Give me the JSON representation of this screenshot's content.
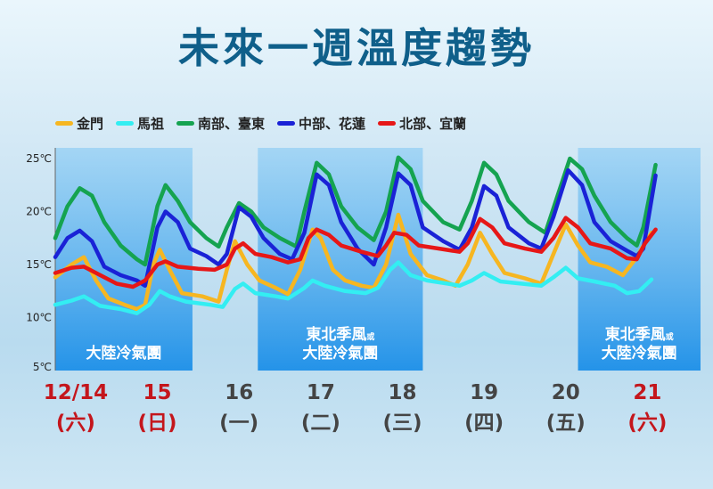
{
  "title": "未來一週溫度趨勢",
  "chart_data": {
    "type": "line",
    "title": "未來一週溫度趨勢",
    "y_ticks": [
      "25℃",
      "20℃",
      "15℃",
      "10℃",
      "5℃"
    ],
    "ylim": [
      5,
      25
    ],
    "grid": false,
    "legend_position": "top-left",
    "days": [
      {
        "date": "12/14",
        "weekday": "(六)",
        "color": "#c4161c"
      },
      {
        "date": "15",
        "weekday": "(日)",
        "color": "#c4161c"
      },
      {
        "date": "16",
        "weekday": "(一)",
        "color": "#444444"
      },
      {
        "date": "17",
        "weekday": "(二)",
        "color": "#444444"
      },
      {
        "date": "18",
        "weekday": "(三)",
        "color": "#444444"
      },
      {
        "date": "19",
        "weekday": "(四)",
        "color": "#444444"
      },
      {
        "date": "20",
        "weekday": "(五)",
        "color": "#444444"
      },
      {
        "date": "21",
        "weekday": "(六)",
        "color": "#c4161c"
      }
    ],
    "x_range": [
      0,
      7.9
    ],
    "bands": [
      {
        "from": 0,
        "to": 1.68,
        "label_main": "大陸冷氣團",
        "label_top": "",
        "label_top_small": ""
      },
      {
        "from": 2.48,
        "to": 4.5,
        "label_main": "大陸冷氣團",
        "label_top": "東北季風",
        "label_top_small": "或"
      },
      {
        "from": 6.4,
        "to": 7.9,
        "label_main": "大陸冷氣團",
        "label_top": "東北季風",
        "label_top_small": "或"
      }
    ],
    "series": [
      {
        "name": "金門",
        "color": "#f6b621",
        "points": [
          [
            0,
            13.8
          ],
          [
            0.2,
            15.0
          ],
          [
            0.35,
            15.7
          ],
          [
            0.5,
            13.5
          ],
          [
            0.65,
            11.8
          ],
          [
            0.85,
            11.2
          ],
          [
            1.0,
            10.8
          ],
          [
            1.1,
            11.2
          ],
          [
            1.2,
            15.0
          ],
          [
            1.28,
            16.4
          ],
          [
            1.4,
            14.5
          ],
          [
            1.55,
            12.3
          ],
          [
            1.8,
            12.0
          ],
          [
            2.0,
            11.5
          ],
          [
            2.1,
            14.5
          ],
          [
            2.2,
            17.2
          ],
          [
            2.35,
            15.0
          ],
          [
            2.5,
            13.5
          ],
          [
            2.7,
            12.8
          ],
          [
            2.85,
            12.2
          ],
          [
            3.0,
            14.5
          ],
          [
            3.15,
            18.3
          ],
          [
            3.25,
            17.5
          ],
          [
            3.4,
            14.5
          ],
          [
            3.55,
            13.5
          ],
          [
            3.75,
            13.0
          ],
          [
            3.9,
            12.8
          ],
          [
            4.05,
            15.0
          ],
          [
            4.2,
            19.7
          ],
          [
            4.35,
            16.0
          ],
          [
            4.55,
            14.0
          ],
          [
            4.75,
            13.5
          ],
          [
            4.9,
            13.0
          ],
          [
            5.05,
            15.0
          ],
          [
            5.2,
            18.0
          ],
          [
            5.35,
            16.0
          ],
          [
            5.5,
            14.2
          ],
          [
            5.75,
            13.7
          ],
          [
            5.95,
            13.2
          ],
          [
            6.1,
            16.0
          ],
          [
            6.25,
            18.8
          ],
          [
            6.4,
            16.8
          ],
          [
            6.55,
            15.2
          ],
          [
            6.75,
            14.8
          ],
          [
            6.95,
            14.0
          ],
          [
            7.1,
            15.5
          ],
          [
            7.3,
            18.0
          ]
        ]
      },
      {
        "name": "馬祖",
        "color": "#33eef2",
        "points": [
          [
            0,
            11.2
          ],
          [
            0.2,
            11.6
          ],
          [
            0.35,
            12.0
          ],
          [
            0.55,
            11.1
          ],
          [
            0.8,
            10.8
          ],
          [
            1.0,
            10.4
          ],
          [
            1.15,
            11.2
          ],
          [
            1.28,
            12.5
          ],
          [
            1.4,
            12.0
          ],
          [
            1.6,
            11.5
          ],
          [
            1.9,
            11.2
          ],
          [
            2.05,
            11.0
          ],
          [
            2.2,
            12.7
          ],
          [
            2.3,
            13.2
          ],
          [
            2.45,
            12.3
          ],
          [
            2.7,
            12.0
          ],
          [
            2.85,
            11.8
          ],
          [
            3.05,
            12.8
          ],
          [
            3.15,
            13.5
          ],
          [
            3.3,
            13.0
          ],
          [
            3.55,
            12.5
          ],
          [
            3.8,
            12.3
          ],
          [
            3.95,
            12.8
          ],
          [
            4.1,
            14.5
          ],
          [
            4.2,
            15.2
          ],
          [
            4.35,
            14.0
          ],
          [
            4.55,
            13.5
          ],
          [
            4.8,
            13.2
          ],
          [
            4.95,
            13.0
          ],
          [
            5.1,
            13.5
          ],
          [
            5.25,
            14.2
          ],
          [
            5.45,
            13.4
          ],
          [
            5.7,
            13.2
          ],
          [
            5.95,
            13.0
          ],
          [
            6.1,
            13.8
          ],
          [
            6.25,
            14.7
          ],
          [
            6.4,
            13.7
          ],
          [
            6.6,
            13.4
          ],
          [
            6.85,
            13.0
          ],
          [
            7.0,
            12.3
          ],
          [
            7.15,
            12.5
          ],
          [
            7.3,
            13.6
          ]
        ]
      },
      {
        "name": "南部、臺東",
        "color": "#15a350",
        "points": [
          [
            0,
            17.5
          ],
          [
            0.15,
            20.5
          ],
          [
            0.3,
            22.2
          ],
          [
            0.45,
            21.5
          ],
          [
            0.6,
            19.0
          ],
          [
            0.8,
            16.8
          ],
          [
            1.0,
            15.5
          ],
          [
            1.1,
            15.0
          ],
          [
            1.25,
            20.5
          ],
          [
            1.35,
            22.5
          ],
          [
            1.5,
            21.0
          ],
          [
            1.65,
            19.0
          ],
          [
            1.85,
            17.5
          ],
          [
            2.0,
            16.7
          ],
          [
            2.1,
            18.5
          ],
          [
            2.25,
            20.8
          ],
          [
            2.4,
            20.0
          ],
          [
            2.55,
            18.5
          ],
          [
            2.75,
            17.5
          ],
          [
            2.95,
            16.7
          ],
          [
            3.05,
            20.0
          ],
          [
            3.2,
            24.6
          ],
          [
            3.35,
            23.5
          ],
          [
            3.5,
            20.5
          ],
          [
            3.7,
            18.5
          ],
          [
            3.9,
            17.3
          ],
          [
            4.05,
            20.0
          ],
          [
            4.2,
            25.1
          ],
          [
            4.35,
            24.0
          ],
          [
            4.5,
            21.0
          ],
          [
            4.75,
            19.0
          ],
          [
            4.95,
            18.3
          ],
          [
            5.1,
            21.0
          ],
          [
            5.25,
            24.6
          ],
          [
            5.4,
            23.5
          ],
          [
            5.55,
            21.0
          ],
          [
            5.8,
            19.0
          ],
          [
            6.0,
            18.0
          ],
          [
            6.15,
            21.5
          ],
          [
            6.3,
            25.0
          ],
          [
            6.45,
            24.0
          ],
          [
            6.6,
            21.5
          ],
          [
            6.8,
            19.0
          ],
          [
            7.0,
            17.5
          ],
          [
            7.12,
            16.8
          ],
          [
            7.2,
            18.5
          ],
          [
            7.35,
            24.4
          ]
        ]
      },
      {
        "name": "中部、花蓮",
        "color": "#1a22d6",
        "points": [
          [
            0,
            15.7
          ],
          [
            0.15,
            17.5
          ],
          [
            0.3,
            18.2
          ],
          [
            0.45,
            17.2
          ],
          [
            0.6,
            14.8
          ],
          [
            0.8,
            14.0
          ],
          [
            1.0,
            13.5
          ],
          [
            1.1,
            13.0
          ],
          [
            1.25,
            18.5
          ],
          [
            1.35,
            20.0
          ],
          [
            1.5,
            19.0
          ],
          [
            1.65,
            16.5
          ],
          [
            1.85,
            15.8
          ],
          [
            2.0,
            15.0
          ],
          [
            2.1,
            16.0
          ],
          [
            2.25,
            20.4
          ],
          [
            2.4,
            19.5
          ],
          [
            2.55,
            17.5
          ],
          [
            2.75,
            16.0
          ],
          [
            2.9,
            15.5
          ],
          [
            3.05,
            18.0
          ],
          [
            3.2,
            23.5
          ],
          [
            3.35,
            22.5
          ],
          [
            3.5,
            19.0
          ],
          [
            3.7,
            16.5
          ],
          [
            3.9,
            15.0
          ],
          [
            4.05,
            18.5
          ],
          [
            4.2,
            23.6
          ],
          [
            4.35,
            22.5
          ],
          [
            4.5,
            18.5
          ],
          [
            4.75,
            17.2
          ],
          [
            4.95,
            16.4
          ],
          [
            5.1,
            18.5
          ],
          [
            5.25,
            22.4
          ],
          [
            5.4,
            21.5
          ],
          [
            5.55,
            18.5
          ],
          [
            5.8,
            17.0
          ],
          [
            5.95,
            16.5
          ],
          [
            6.1,
            19.5
          ],
          [
            6.28,
            23.9
          ],
          [
            6.45,
            22.5
          ],
          [
            6.6,
            19.0
          ],
          [
            6.8,
            17.2
          ],
          [
            7.0,
            16.3
          ],
          [
            7.12,
            15.8
          ],
          [
            7.2,
            16.5
          ],
          [
            7.35,
            23.4
          ]
        ]
      },
      {
        "name": "北部、宜蘭",
        "color": "#e61717",
        "points": [
          [
            0,
            14.2
          ],
          [
            0.2,
            14.7
          ],
          [
            0.35,
            14.8
          ],
          [
            0.55,
            14.0
          ],
          [
            0.75,
            13.2
          ],
          [
            0.95,
            12.9
          ],
          [
            1.1,
            13.5
          ],
          [
            1.25,
            15.0
          ],
          [
            1.35,
            15.3
          ],
          [
            1.5,
            14.8
          ],
          [
            1.75,
            14.6
          ],
          [
            1.95,
            14.5
          ],
          [
            2.1,
            15.0
          ],
          [
            2.2,
            16.5
          ],
          [
            2.3,
            17.0
          ],
          [
            2.45,
            16.0
          ],
          [
            2.65,
            15.7
          ],
          [
            2.85,
            15.2
          ],
          [
            3.0,
            15.5
          ],
          [
            3.1,
            17.5
          ],
          [
            3.2,
            18.3
          ],
          [
            3.35,
            17.8
          ],
          [
            3.5,
            16.8
          ],
          [
            3.75,
            16.2
          ],
          [
            3.95,
            15.8
          ],
          [
            4.05,
            16.8
          ],
          [
            4.15,
            18.0
          ],
          [
            4.3,
            17.8
          ],
          [
            4.45,
            16.8
          ],
          [
            4.7,
            16.5
          ],
          [
            4.95,
            16.2
          ],
          [
            5.05,
            17.0
          ],
          [
            5.2,
            19.3
          ],
          [
            5.35,
            18.5
          ],
          [
            5.5,
            17.0
          ],
          [
            5.75,
            16.5
          ],
          [
            5.95,
            16.2
          ],
          [
            6.1,
            17.5
          ],
          [
            6.25,
            19.4
          ],
          [
            6.4,
            18.5
          ],
          [
            6.55,
            17.0
          ],
          [
            6.8,
            16.5
          ],
          [
            7.0,
            15.6
          ],
          [
            7.12,
            15.5
          ],
          [
            7.22,
            17.0
          ],
          [
            7.35,
            18.3
          ]
        ]
      }
    ]
  }
}
